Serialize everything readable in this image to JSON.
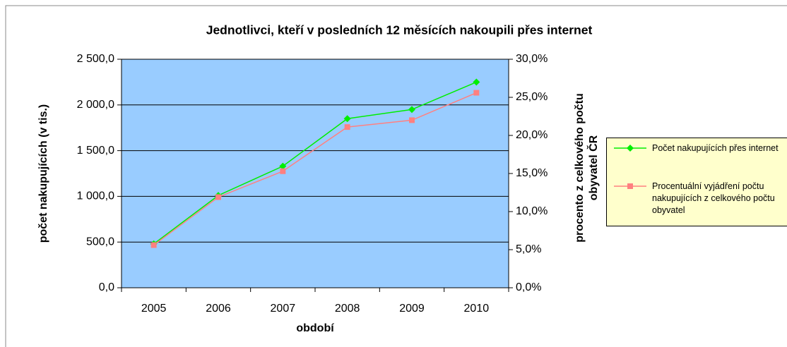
{
  "chart_data": {
    "type": "line",
    "title": "Jednotlivci, kteří v posledních 12 měsících nakoupili přes internet",
    "x_label": "období",
    "y_label": "počet nakupujících (v tis.)",
    "y2_label": "procento z celkového počtu obyvatel ČR",
    "categories": [
      "2005",
      "2006",
      "2007",
      "2008",
      "2009",
      "2010"
    ],
    "series": [
      {
        "name": "Počet nakupujících přes internet",
        "color": "#00ee00",
        "marker": "diamond",
        "values": [
          480,
          1010,
          1330,
          1850,
          1950,
          2250
        ]
      },
      {
        "name": "Procentuální vyjádření počtu nakupujících z celkového počtu obyvatel",
        "color": "#ff8080",
        "marker": "square",
        "axis": "y2",
        "values": [
          5.6,
          11.9,
          15.3,
          21.1,
          22.0,
          25.6
        ]
      }
    ],
    "ylim": [
      0,
      2500
    ],
    "yticks": [
      {
        "value": 0,
        "label": "0,0"
      },
      {
        "value": 500,
        "label": "500,0"
      },
      {
        "value": 1000,
        "label": "1 000,0"
      },
      {
        "value": 1500,
        "label": "1 500,0"
      },
      {
        "value": 2000,
        "label": "2 000,0"
      },
      {
        "value": 2500,
        "label": "2 500,0"
      }
    ],
    "y2lim": [
      0,
      30
    ],
    "y2ticks": [
      {
        "value": 0,
        "label": "0,0%"
      },
      {
        "value": 5,
        "label": "5,0%"
      },
      {
        "value": 10,
        "label": "10,0%"
      },
      {
        "value": 15,
        "label": "15,0%"
      },
      {
        "value": 20,
        "label": "20,0%"
      },
      {
        "value": 25,
        "label": "25,0%"
      },
      {
        "value": 30,
        "label": "30,0%"
      }
    ],
    "grid": true,
    "legend": "right"
  }
}
